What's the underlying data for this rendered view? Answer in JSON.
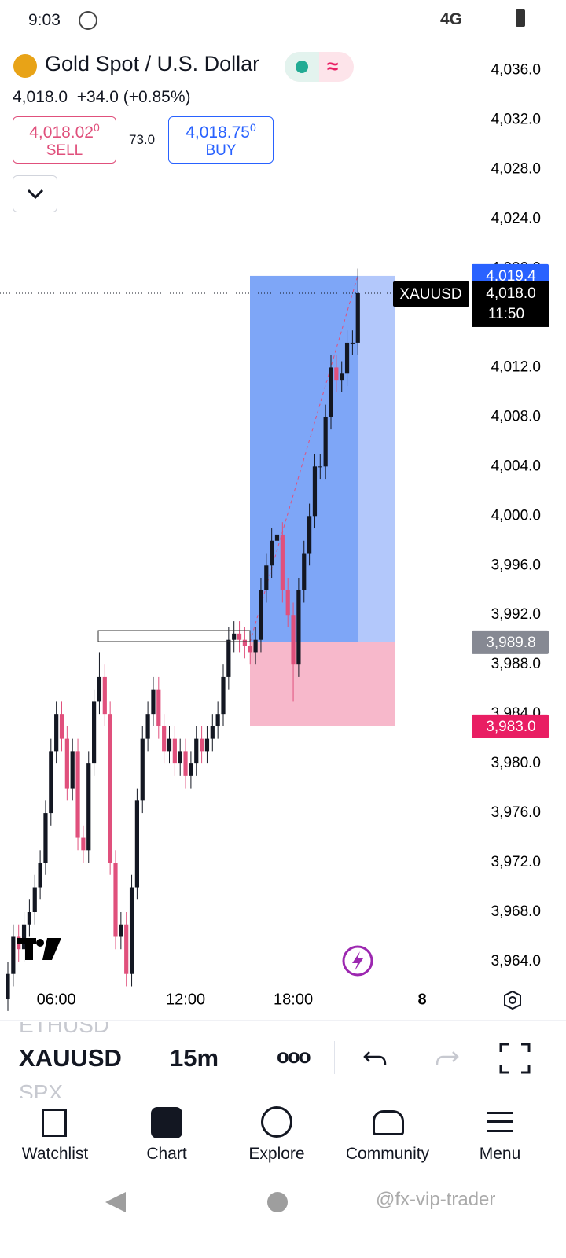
{
  "status_bar": {
    "time": "9:03",
    "network": "4G"
  },
  "header": {
    "title": "Gold Spot / U.S. Dollar",
    "last": "4,018.0",
    "change": "+34.0",
    "change_pct": "(+0.85%)"
  },
  "trade": {
    "sell_price": "4,018.02",
    "sell_pip": "0",
    "sell": "SELL",
    "spread": "73.0",
    "buy_price": "4,018.75",
    "buy_pip": "0",
    "buy": "BUY"
  },
  "chart_data": {
    "type": "candlestick",
    "categories": [
      null,
      null,
      null,
      null,
      null,
      null,
      null,
      null,
      null,
      "06:00",
      null,
      null,
      null,
      null,
      null,
      null,
      null,
      null,
      null,
      null,
      null,
      null,
      null,
      null,
      null,
      null,
      null,
      null,
      null,
      null,
      null,
      null,
      null,
      "12:00",
      null,
      null,
      null,
      null,
      null,
      null,
      null,
      null,
      null,
      null,
      null,
      null,
      null,
      null,
      null,
      null,
      null,
      null,
      null,
      "18:00",
      null,
      null,
      null,
      null,
      null,
      null,
      null,
      null,
      null,
      null,
      null,
      null
    ],
    "open": [
      3961,
      3963,
      3966,
      3965,
      3967,
      3968,
      3970,
      3972,
      3976,
      3981,
      3984,
      3982,
      3978,
      3981,
      3974,
      3973,
      3980,
      3985,
      3987,
      3984,
      3972,
      3966,
      3967,
      3963,
      3970,
      3977,
      3982,
      3984,
      3986,
      3983,
      3981,
      3982,
      3980,
      3981,
      3979,
      3980,
      3982,
      3981,
      3982,
      3983,
      3984,
      3987,
      3990,
      3990.5,
      3990,
      3989.5,
      3989,
      3990,
      3994,
      3996,
      3998,
      3998.5,
      3994,
      3992,
      3988,
      3994,
      3997,
      4000,
      4004,
      4004,
      4008,
      4012,
      4011,
      4011.5,
      4014,
      4014
    ],
    "high": [
      3964,
      3967,
      3967,
      3968,
      3969,
      3971,
      3973,
      3977,
      3982,
      3985,
      3985,
      3983,
      3982,
      3982,
      3975,
      3981,
      3986,
      3989,
      3988,
      3985,
      3973,
      3968,
      3968,
      3971,
      3978,
      3983,
      3985,
      3987,
      3987,
      3984,
      3983,
      3983,
      3982,
      3982,
      3981,
      3983,
      3983,
      3983,
      3984,
      3985,
      3988,
      3991,
      3991.5,
      3991.5,
      3991,
      3990.5,
      3991,
      3995,
      3997,
      3999,
      3999.5,
      3999.5,
      3995,
      3993,
      3995,
      3998,
      4001,
      4005,
      4005,
      4009,
      4013,
      4013,
      4012.5,
      4015,
      4015,
      4020
    ],
    "low": [
      3960,
      3962,
      3964,
      3964,
      3966,
      3967,
      3969,
      3971,
      3975,
      3980,
      3981,
      3977,
      3977,
      3973,
      3972,
      3972,
      3979,
      3984,
      3983,
      3971,
      3965,
      3965,
      3962,
      3962,
      3969,
      3976,
      3981,
      3983,
      3982,
      3980,
      3980,
      3979,
      3979,
      3978,
      3978,
      3979,
      3980,
      3980,
      3981,
      3982,
      3983,
      3986,
      3989,
      3989,
      3988.5,
      3988,
      3988,
      3989,
      3993,
      3995,
      3997,
      3993,
      3991,
      3985,
      3987,
      3993,
      3996,
      3999,
      4003,
      4003,
      4007,
      4010,
      4010,
      4010.5,
      4013,
      4013
    ],
    "close": [
      3963,
      3966,
      3965,
      3967,
      3968,
      3970,
      3972,
      3976,
      3981,
      3984,
      3982,
      3978,
      3981,
      3974,
      3973,
      3980,
      3985,
      3987,
      3984,
      3972,
      3966,
      3967,
      3963,
      3970,
      3977,
      3982,
      3984,
      3986,
      3983,
      3981,
      3982,
      3980,
      3981,
      3979,
      3980,
      3982,
      3981,
      3982,
      3983,
      3984,
      3987,
      3990,
      3990.5,
      3990,
      3989.5,
      3989,
      3990,
      3994,
      3996,
      3998,
      3998.5,
      3994,
      3992,
      3988,
      3994,
      3997,
      4000,
      4004,
      4004,
      4008,
      4012,
      4011,
      4011.5,
      4014,
      4014,
      4018
    ],
    "up_color": "#131722",
    "down_color": "#e0507c",
    "ylim": [
      3962.6,
      4038.2
    ],
    "yticks": [
      {
        "value": 4036,
        "label": "4,036.0"
      },
      {
        "value": 4032,
        "label": "4,032.0"
      },
      {
        "value": 4028,
        "label": "4,028.0"
      },
      {
        "value": 4024,
        "label": "4,024.0"
      },
      {
        "value": 4020,
        "label": "4,020.0"
      },
      {
        "value": 4016,
        "label": "4,016.0"
      },
      {
        "value": 4012,
        "label": "4,012.0"
      },
      {
        "value": 4008,
        "label": "4,008.0"
      },
      {
        "value": 4004,
        "label": "4,004.0"
      },
      {
        "value": 4000,
        "label": "4,000.0"
      },
      {
        "value": 3996,
        "label": "3,996.0"
      },
      {
        "value": 3992,
        "label": "3,992.0"
      },
      {
        "value": 3988,
        "label": "3,988.0"
      },
      {
        "value": 3984,
        "label": "3,984.0"
      },
      {
        "value": 3980,
        "label": "3,980.0"
      },
      {
        "value": 3976,
        "label": "3,976.0"
      },
      {
        "value": 3972,
        "label": "3,972.0"
      },
      {
        "value": 3968,
        "label": "3,968.0"
      },
      {
        "value": 3964,
        "label": "3,964.0"
      }
    ],
    "last": 4018.0,
    "last_label": "4,018.0",
    "countdown": "11:50",
    "symbol": "XAUUSD",
    "position": {
      "target": 4019.4,
      "target_label": "4,019.4",
      "entry": 3989.8,
      "entry_label": "3,989.8",
      "stop": 3983.0,
      "stop_label": "3,983.0"
    },
    "date_marker": "8"
  },
  "toolbar": {
    "prev_symbol": "ETHUSD",
    "symbol": "XAUUSD",
    "interval": "15m",
    "next_symbol": "SPX"
  },
  "nav": [
    "Watchlist",
    "Chart",
    "Explore",
    "Community",
    "Menu"
  ],
  "watermark": "@fx-vip-trader"
}
